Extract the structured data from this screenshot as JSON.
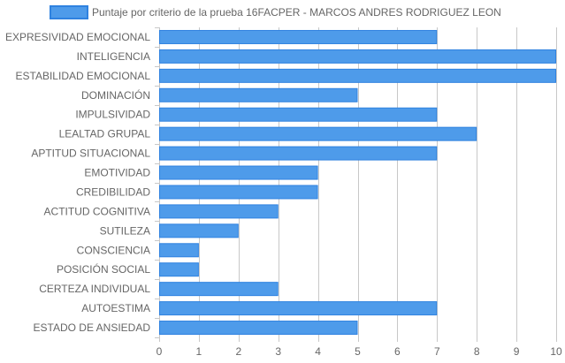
{
  "colors": {
    "bar_fill": "#4e9bea",
    "bar_stroke": "#2f82e0",
    "grid": "#c8c8c8",
    "axis_text": "#666666"
  },
  "chart_data": {
    "type": "bar",
    "orientation": "horizontal",
    "categories": [
      "EXPRESIVIDAD EMOCIONAL",
      "INTELIGENCIA",
      "ESTABILIDAD EMOCIONAL",
      "DOMINACIÓN",
      "IMPULSIVIDAD",
      "LEALTAD GRUPAL",
      "APTITUD SITUACIONAL",
      "EMOTIVIDAD",
      "CREDIBILIDAD",
      "ACTITUD COGNITIVA",
      "SUTILEZA",
      "CONSCIENCIA",
      "POSICIÓN SOCIAL",
      "CERTEZA INDIVIDUAL",
      "AUTOESTIMA",
      "ESTADO DE ANSIEDAD"
    ],
    "series": [
      {
        "name": "Puntaje por criterio de la prueba 16FACPER - MARCOS ANDRES RODRIGUEZ LEON",
        "values": [
          7,
          10,
          10,
          5,
          7,
          8,
          7,
          4,
          4,
          3,
          2,
          1,
          1,
          3,
          7,
          5
        ]
      }
    ],
    "xticks": [
      "0",
      "1",
      "2",
      "3",
      "4",
      "5",
      "6",
      "7",
      "8",
      "9",
      "10"
    ],
    "xlim": [
      0,
      10
    ],
    "grid": true,
    "legend_position": "top"
  }
}
